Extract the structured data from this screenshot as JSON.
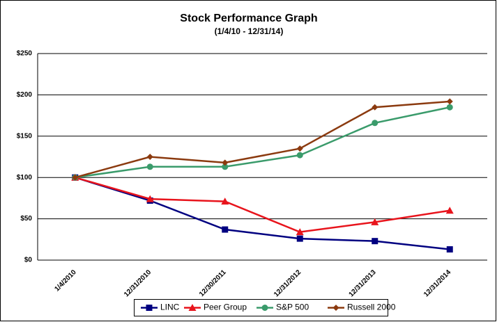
{
  "chart_data": {
    "type": "line",
    "title": "Stock Performance Graph",
    "subtitle": "(1/4/10 - 12/31/14)",
    "categories": [
      "1/4/2010",
      "12/31/2010",
      "12/30/2011",
      "12/31/2012",
      "12/31/2013",
      "12/31/2014"
    ],
    "series": [
      {
        "name": "LINC",
        "color": "#000080",
        "marker": "square",
        "values": [
          100,
          72,
          37,
          26,
          23,
          13
        ]
      },
      {
        "name": "Peer Group",
        "color": "#e8141c",
        "marker": "triangle",
        "values": [
          100,
          74,
          71,
          34,
          46,
          60
        ]
      },
      {
        "name": "S&P 500",
        "color": "#3a9b6b",
        "marker": "circle",
        "values": [
          100,
          113,
          113,
          127,
          166,
          185
        ]
      },
      {
        "name": "Russell 2000",
        "color": "#8b3a0f",
        "marker": "diamond",
        "values": [
          100,
          125,
          118,
          135,
          185,
          192
        ]
      }
    ],
    "ylim": [
      0,
      250
    ],
    "yticks": [
      {
        "value": 0,
        "label": "$0"
      },
      {
        "value": 50,
        "label": "$50"
      },
      {
        "value": 100,
        "label": "$100"
      },
      {
        "value": 150,
        "label": "$150"
      },
      {
        "value": 200,
        "label": "$200"
      },
      {
        "value": 250,
        "label": "$250"
      }
    ],
    "grid": true,
    "legend": "bottom"
  }
}
